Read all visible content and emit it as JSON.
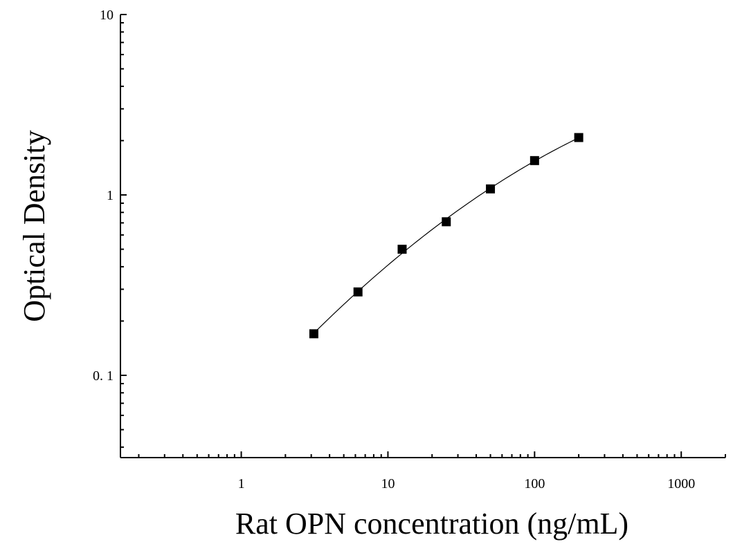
{
  "chart_data": {
    "type": "scatter",
    "title": "",
    "xlabel": "Rat OPN concentration (ng/mL)",
    "ylabel": "Optical Density",
    "x_scale": "log",
    "y_scale": "log",
    "xlim": [
      0.15,
      2000
    ],
    "ylim": [
      0.035,
      10
    ],
    "x_ticks": [
      {
        "value": 1,
        "label": "1"
      },
      {
        "value": 10,
        "label": "10"
      },
      {
        "value": 100,
        "label": "100"
      },
      {
        "value": 1000,
        "label": "1000"
      }
    ],
    "y_ticks": [
      {
        "value": 0.1,
        "label": "0. 1"
      },
      {
        "value": 1,
        "label": "1"
      },
      {
        "value": 10,
        "label": "10"
      }
    ],
    "grid": false,
    "legend": "none",
    "series": [
      {
        "marker": "square",
        "fit_line": true,
        "color": "#000000",
        "x": [
          3.125,
          6.25,
          12.5,
          25,
          50,
          100,
          200
        ],
        "y": [
          0.17,
          0.29,
          0.5,
          0.71,
          1.08,
          1.55,
          2.08
        ]
      }
    ]
  }
}
